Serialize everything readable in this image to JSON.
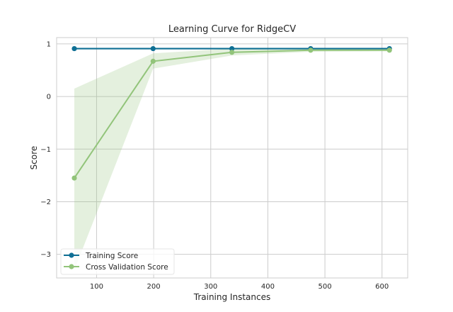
{
  "chart_data": {
    "type": "line",
    "title": "Learning Curve for RidgeCV",
    "xlabel": "Training Instances",
    "ylabel": "Score",
    "xlim": [
      30,
      645
    ],
    "ylim": [
      -3.45,
      1.12
    ],
    "xticks": [
      100,
      200,
      300,
      400,
      500,
      600
    ],
    "xtick_labels": [
      "100",
      "200",
      "300",
      "400",
      "500",
      "600"
    ],
    "yticks": [
      -3,
      -2,
      -1,
      0,
      1
    ],
    "ytick_labels": [
      "−3",
      "−2",
      "−1",
      "0",
      "1"
    ],
    "grid": true,
    "legend_position": "lower-left",
    "x": [
      61,
      199,
      337,
      475,
      613
    ],
    "series": [
      {
        "name": "Training Score",
        "color": "#0e6f94",
        "values": [
          0.91,
          0.91,
          0.91,
          0.91,
          0.91
        ],
        "band_lower": [
          0.9,
          0.9,
          0.9,
          0.9,
          0.9
        ],
        "band_upper": [
          0.93,
          0.93,
          0.93,
          0.93,
          0.93
        ]
      },
      {
        "name": "Cross Validation Score",
        "color": "#92c47a",
        "values": [
          -1.55,
          0.67,
          0.84,
          0.88,
          0.88
        ],
        "band_lower": [
          -3.3,
          0.53,
          0.78,
          0.85,
          0.86
        ],
        "band_upper": [
          0.15,
          0.82,
          0.91,
          0.92,
          0.92
        ]
      }
    ]
  }
}
